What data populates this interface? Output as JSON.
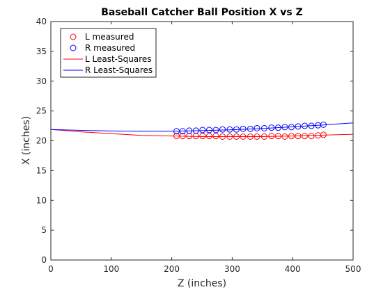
{
  "chart_data": {
    "type": "scatter",
    "title": "Baseball Catcher Ball Position X vs Z",
    "xlabel": "Z (inches)",
    "ylabel": "X (inches)",
    "xlim": [
      0,
      500
    ],
    "ylim": [
      0,
      40
    ],
    "xticks": [
      0,
      100,
      200,
      300,
      400,
      500
    ],
    "yticks": [
      0,
      5,
      10,
      15,
      20,
      25,
      30,
      35,
      40
    ],
    "grid": false,
    "legend_position": "top-left",
    "series": [
      {
        "name": "L measured",
        "kind": "markers",
        "marker": "circle",
        "color": "#ff0000",
        "x": [
          208,
          218,
          229,
          240,
          251,
          262,
          273,
          284,
          296,
          307,
          318,
          330,
          341,
          353,
          365,
          376,
          387,
          398,
          409,
          420,
          431,
          442,
          451
        ],
        "y": [
          20.8,
          20.8,
          20.8,
          20.8,
          20.8,
          20.8,
          20.8,
          20.7,
          20.7,
          20.7,
          20.7,
          20.7,
          20.7,
          20.7,
          20.8,
          20.8,
          20.7,
          20.8,
          20.8,
          20.8,
          20.8,
          20.9,
          21.0
        ]
      },
      {
        "name": "R measured",
        "kind": "markers",
        "marker": "circle",
        "color": "#0000ff",
        "x": [
          208,
          218,
          229,
          240,
          251,
          262,
          273,
          284,
          296,
          307,
          318,
          330,
          341,
          353,
          365,
          376,
          387,
          398,
          409,
          420,
          431,
          442,
          451
        ],
        "y": [
          21.6,
          21.6,
          21.7,
          21.7,
          21.8,
          21.8,
          21.8,
          21.9,
          21.9,
          21.9,
          22.0,
          22.0,
          22.1,
          22.1,
          22.2,
          22.2,
          22.3,
          22.3,
          22.4,
          22.5,
          22.5,
          22.6,
          22.7
        ]
      },
      {
        "name": "L Least-Squares",
        "kind": "line",
        "color": "#ff0000",
        "x": [
          0,
          50,
          100,
          150,
          200,
          250,
          300,
          350,
          400,
          450,
          500
        ],
        "y": [
          21.9,
          21.5,
          21.2,
          20.9,
          20.8,
          20.7,
          20.7,
          20.7,
          20.8,
          20.95,
          21.1
        ]
      },
      {
        "name": "R Least-Squares",
        "kind": "line",
        "color": "#0000ff",
        "x": [
          0,
          50,
          100,
          150,
          200,
          250,
          300,
          350,
          400,
          450,
          500
        ],
        "y": [
          21.9,
          21.75,
          21.65,
          21.6,
          21.6,
          21.7,
          21.85,
          22.05,
          22.35,
          22.65,
          23.0
        ]
      }
    ]
  }
}
